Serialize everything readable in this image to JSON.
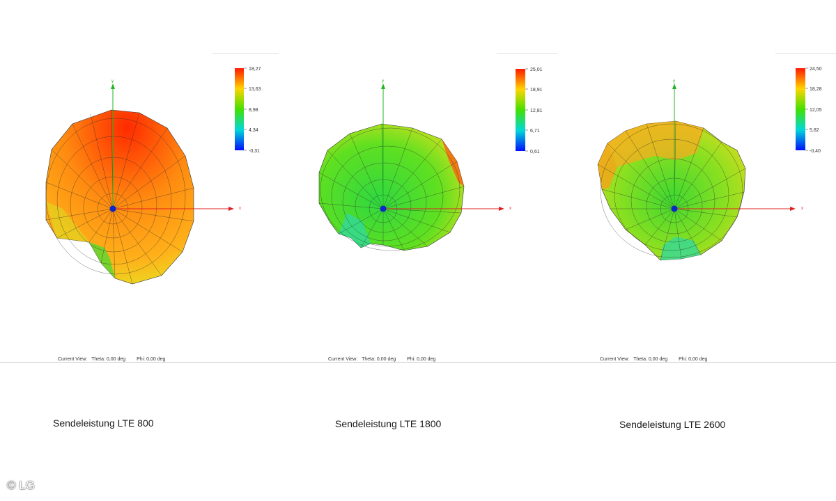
{
  "chart_data": [
    {
      "type": "other",
      "title": "Sendeleistung LTE 800",
      "colorbar_ticks": [
        "18,27",
        "13,63",
        "8,98",
        "4,34",
        "-0,31"
      ],
      "axes": {
        "x": "x",
        "y": "y"
      },
      "view": {
        "label": "Current View:",
        "theta": "Theta: 0,00 deg",
        "phi": "Phi: 0,00 deg"
      },
      "dominant_color": "#ff7a10"
    },
    {
      "type": "other",
      "title": "Sendeleistung LTE 1800",
      "colorbar_ticks": [
        "25,01",
        "18,91",
        "12,81",
        "6,71",
        "0,61"
      ],
      "axes": {
        "x": "x",
        "y": "y"
      },
      "view": {
        "label": "Current View:",
        "theta": "Theta: 0,00 deg",
        "phi": "Phi: 0,00 deg"
      },
      "dominant_color": "#4ee02a"
    },
    {
      "type": "other",
      "title": "Sendeleistung LTE 2600",
      "colorbar_ticks": [
        "24,50",
        "18,28",
        "12,05",
        "5,82",
        "-0,40"
      ],
      "axes": {
        "x": "x",
        "y": "y"
      },
      "view": {
        "label": "Current View:",
        "theta": "Theta: 0,00 deg",
        "phi": "Phi: 0,00 deg"
      },
      "dominant_color": "#7ce21e"
    }
  ],
  "copyright": "© LG"
}
